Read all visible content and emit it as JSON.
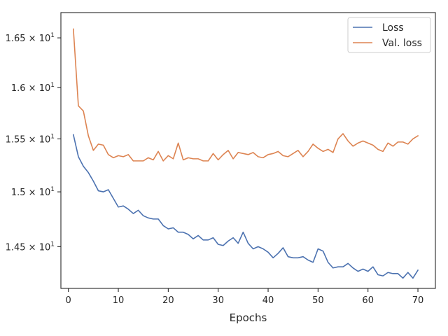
{
  "chart_data": {
    "type": "line",
    "title": "",
    "xlabel": "Epochs",
    "ylabel": "",
    "xlim": [
      -1.5,
      73.5
    ],
    "ylim": [
      14.13,
      16.76
    ],
    "y_scale": "log",
    "grid": false,
    "legend_position": "top-right",
    "x_ticks": [
      {
        "value": 0,
        "label": "0"
      },
      {
        "value": 10,
        "label": "10"
      },
      {
        "value": 20,
        "label": "20"
      },
      {
        "value": 30,
        "label": "30"
      },
      {
        "value": 40,
        "label": "40"
      },
      {
        "value": 50,
        "label": "50"
      },
      {
        "value": 60,
        "label": "60"
      },
      {
        "value": 70,
        "label": "70"
      }
    ],
    "y_ticks": [
      {
        "value": 14.5,
        "mantissa": "1.45",
        "base": "10",
        "exponent": "1"
      },
      {
        "value": 15.0,
        "mantissa": "1.5",
        "base": "10",
        "exponent": "1"
      },
      {
        "value": 15.5,
        "mantissa": "1.55",
        "base": "10",
        "exponent": "1"
      },
      {
        "value": 16.0,
        "mantissa": "1.6",
        "base": "10",
        "exponent": "1"
      },
      {
        "value": 16.5,
        "mantissa": "1.65",
        "base": "10",
        "exponent": "1"
      }
    ],
    "x": [
      1,
      2,
      3,
      4,
      5,
      6,
      7,
      8,
      9,
      10,
      11,
      12,
      13,
      14,
      15,
      16,
      17,
      18,
      19,
      20,
      21,
      22,
      23,
      24,
      25,
      26,
      27,
      28,
      29,
      30,
      31,
      32,
      33,
      34,
      35,
      36,
      37,
      38,
      39,
      40,
      41,
      42,
      43,
      44,
      45,
      46,
      47,
      48,
      49,
      50,
      51,
      52,
      53,
      54,
      55,
      56,
      57,
      58,
      59,
      60,
      61,
      62,
      63,
      64,
      65,
      66,
      67,
      68,
      69,
      70
    ],
    "series": [
      {
        "name": "Loss",
        "color": "#4c72b0",
        "values": [
          15.54,
          15.33,
          15.24,
          15.18,
          15.1,
          15.01,
          15.0,
          15.02,
          14.94,
          14.86,
          14.87,
          14.84,
          14.8,
          14.83,
          14.78,
          14.76,
          14.75,
          14.75,
          14.69,
          14.66,
          14.67,
          14.63,
          14.63,
          14.61,
          14.57,
          14.6,
          14.56,
          14.56,
          14.58,
          14.52,
          14.51,
          14.55,
          14.58,
          14.53,
          14.63,
          14.53,
          14.48,
          14.5,
          14.48,
          14.45,
          14.4,
          14.44,
          14.49,
          14.41,
          14.4,
          14.4,
          14.41,
          14.38,
          14.36,
          14.48,
          14.46,
          14.36,
          14.31,
          14.32,
          14.32,
          14.35,
          14.31,
          14.28,
          14.3,
          14.28,
          14.32,
          14.25,
          14.24,
          14.27,
          14.26,
          14.26,
          14.22,
          14.27,
          14.22,
          14.29
        ]
      },
      {
        "name": "Val. loss",
        "color": "#dd8452",
        "values": [
          16.59,
          15.82,
          15.77,
          15.53,
          15.39,
          15.45,
          15.44,
          15.35,
          15.32,
          15.34,
          15.33,
          15.35,
          15.29,
          15.29,
          15.29,
          15.32,
          15.3,
          15.38,
          15.29,
          15.34,
          15.31,
          15.46,
          15.3,
          15.32,
          15.31,
          15.31,
          15.29,
          15.29,
          15.36,
          15.3,
          15.35,
          15.39,
          15.31,
          15.37,
          15.36,
          15.35,
          15.37,
          15.33,
          15.32,
          15.35,
          15.36,
          15.38,
          15.34,
          15.33,
          15.36,
          15.39,
          15.33,
          15.38,
          15.45,
          15.41,
          15.38,
          15.4,
          15.37,
          15.5,
          15.55,
          15.48,
          15.43,
          15.46,
          15.48,
          15.46,
          15.44,
          15.4,
          15.38,
          15.46,
          15.43,
          15.47,
          15.47,
          15.45,
          15.5,
          15.53
        ]
      }
    ]
  }
}
